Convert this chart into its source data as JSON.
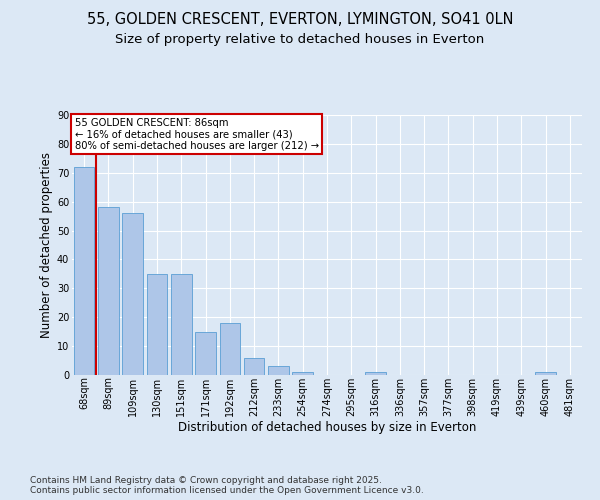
{
  "title_line1": "55, GOLDEN CRESCENT, EVERTON, LYMINGTON, SO41 0LN",
  "title_line2": "Size of property relative to detached houses in Everton",
  "xlabel": "Distribution of detached houses by size in Everton",
  "ylabel": "Number of detached properties",
  "categories": [
    "68sqm",
    "89sqm",
    "109sqm",
    "130sqm",
    "151sqm",
    "171sqm",
    "192sqm",
    "212sqm",
    "233sqm",
    "254sqm",
    "274sqm",
    "295sqm",
    "316sqm",
    "336sqm",
    "357sqm",
    "377sqm",
    "398sqm",
    "419sqm",
    "439sqm",
    "460sqm",
    "481sqm"
  ],
  "values": [
    72,
    58,
    56,
    35,
    35,
    15,
    18,
    6,
    3,
    1,
    0,
    0,
    1,
    0,
    0,
    0,
    0,
    0,
    0,
    1,
    0
  ],
  "bar_color": "#aec6e8",
  "bar_edge_color": "#5a9fd4",
  "vline_x_index": 1,
  "vline_color": "#cc0000",
  "annotation_box_text": "55 GOLDEN CRESCENT: 86sqm\n← 16% of detached houses are smaller (43)\n80% of semi-detached houses are larger (212) →",
  "annotation_box_color": "#cc0000",
  "annotation_text_color": "#000000",
  "background_color": "#dce8f5",
  "grid_color": "#ffffff",
  "ylim": [
    0,
    90
  ],
  "yticks": [
    0,
    10,
    20,
    30,
    40,
    50,
    60,
    70,
    80,
    90
  ],
  "footer_text": "Contains HM Land Registry data © Crown copyright and database right 2025.\nContains public sector information licensed under the Open Government Licence v3.0.",
  "title_fontsize": 10.5,
  "subtitle_fontsize": 9.5,
  "axis_label_fontsize": 8.5,
  "tick_fontsize": 7,
  "footer_fontsize": 6.5
}
